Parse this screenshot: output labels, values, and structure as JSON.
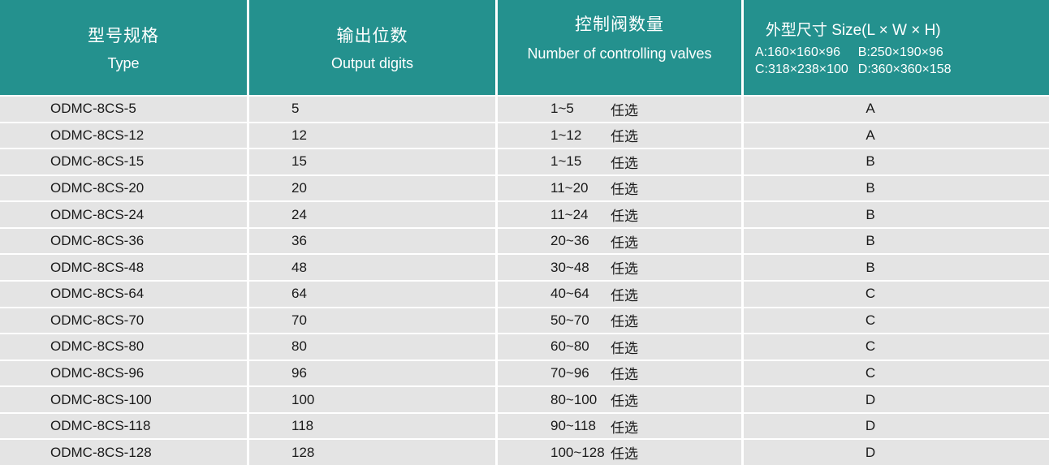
{
  "table": {
    "colors": {
      "header_bg": "#24918E",
      "row_bg": "#E4E4E4",
      "header_text": "#FFFFFF",
      "body_text": "#1A1A1A"
    },
    "header": {
      "type": {
        "zh": "型号规格",
        "en": "Type"
      },
      "digits": {
        "zh": "输出位数",
        "en": "Output digits"
      },
      "valves": {
        "zh": "控制阀数量",
        "en": "Number of controlling valves"
      },
      "size": {
        "title": "外型尺寸 Size(L × W × H)",
        "legend": [
          "A:160×160×96",
          "B:250×190×96",
          "C:318×238×100",
          "D:360×360×158"
        ]
      }
    },
    "optional_label": "任选",
    "rows": [
      {
        "model": "ODMC-8CS-5",
        "digits": "5",
        "valves": "1~5",
        "size": "A"
      },
      {
        "model": "ODMC-8CS-12",
        "digits": "12",
        "valves": "1~12",
        "size": "A"
      },
      {
        "model": "ODMC-8CS-15",
        "digits": "15",
        "valves": "1~15",
        "size": "B"
      },
      {
        "model": "ODMC-8CS-20",
        "digits": "20",
        "valves": "11~20",
        "size": "B"
      },
      {
        "model": "ODMC-8CS-24",
        "digits": "24",
        "valves": "11~24",
        "size": "B"
      },
      {
        "model": "ODMC-8CS-36",
        "digits": "36",
        "valves": "20~36",
        "size": "B"
      },
      {
        "model": "ODMC-8CS-48",
        "digits": "48",
        "valves": "30~48",
        "size": "B"
      },
      {
        "model": "ODMC-8CS-64",
        "digits": "64",
        "valves": "40~64",
        "size": "C"
      },
      {
        "model": "ODMC-8CS-70",
        "digits": "70",
        "valves": "50~70",
        "size": "C"
      },
      {
        "model": "ODMC-8CS-80",
        "digits": "80",
        "valves": "60~80",
        "size": "C"
      },
      {
        "model": "ODMC-8CS-96",
        "digits": "96",
        "valves": "70~96",
        "size": "C"
      },
      {
        "model": "ODMC-8CS-100",
        "digits": "100",
        "valves": "80~100",
        "size": "D"
      },
      {
        "model": "ODMC-8CS-118",
        "digits": "118",
        "valves": "90~118",
        "size": "D"
      },
      {
        "model": "ODMC-8CS-128",
        "digits": "128",
        "valves": "100~128",
        "size": "D"
      }
    ]
  }
}
